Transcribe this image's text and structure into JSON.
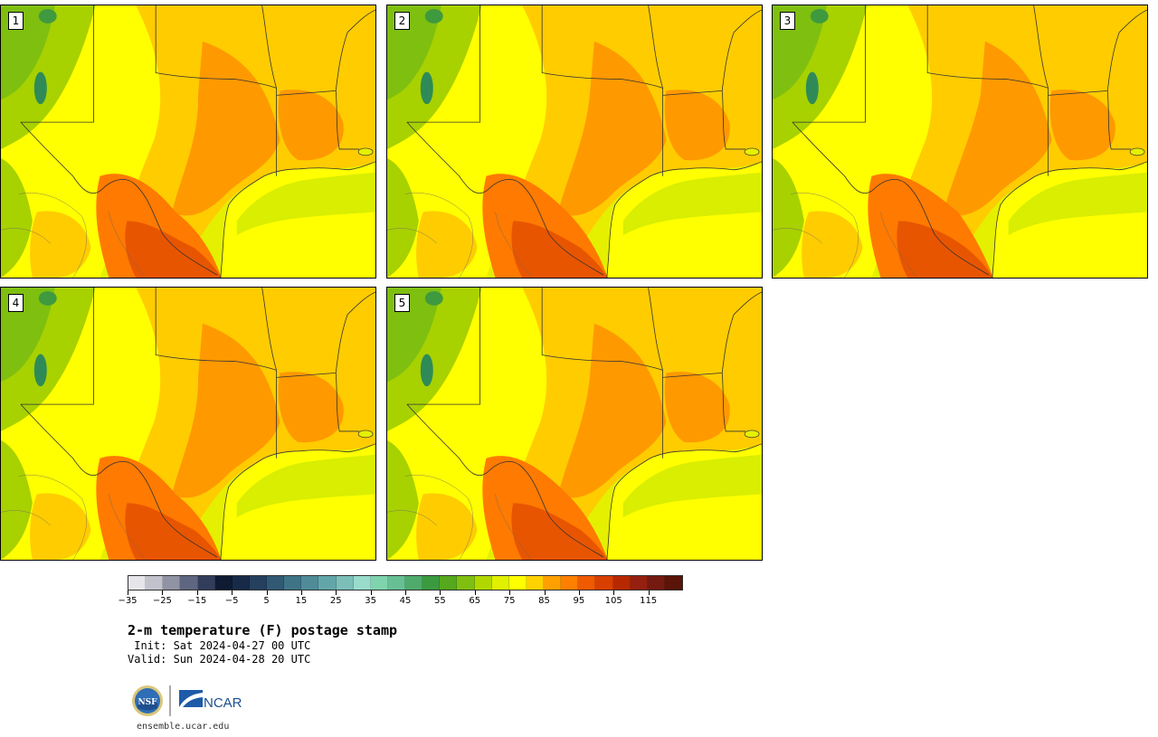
{
  "panels": [
    {
      "label": "1",
      "variant": 0
    },
    {
      "label": "2",
      "variant": 1
    },
    {
      "label": "3",
      "variant": 2
    },
    {
      "label": "4",
      "variant": 3
    },
    {
      "label": "5",
      "variant": 4
    }
  ],
  "colors": {
    "gulf": "#ffff00",
    "coast": "#d9ee00",
    "light_yellow_green": "#e4f000",
    "mid_green": "#a8d100",
    "green": "#7fbf10",
    "dark_green": "#3f9a3f",
    "mountain_green": "#2e8b57",
    "gold": "#ffcc00",
    "orange": "#ff9900",
    "dark_orange": "#ff7a00",
    "red_orange": "#e85500",
    "border_line": "#333333"
  },
  "colorbar": {
    "colors": [
      "#e6e6ea",
      "#c2c2cc",
      "#8f93a3",
      "#5f6680",
      "#323d5c",
      "#0f1b33",
      "#172a48",
      "#24405e",
      "#315974",
      "#3f7386",
      "#4f8c98",
      "#63a6a9",
      "#7cbfb9",
      "#99dccc",
      "#7fd3ad",
      "#67c094",
      "#4fab6b",
      "#3b9a3f",
      "#56a81c",
      "#7fbf10",
      "#b0d800",
      "#e0f000",
      "#ffff00",
      "#ffd100",
      "#ffa000",
      "#ff7f00",
      "#f05a00",
      "#d93f00",
      "#b82800",
      "#952010",
      "#741a10",
      "#5a1408"
    ],
    "ticks": [
      "−35",
      "−25",
      "−15",
      "−5",
      "5",
      "15",
      "25",
      "35",
      "45",
      "55",
      "65",
      "75",
      "85",
      "95",
      "105",
      "115"
    ]
  },
  "title": "2-m temperature (F) postage stamp",
  "init_line": " Init: Sat 2024-04-27 00 UTC",
  "valid_line": "Valid: Sun 2024-04-28 20 UTC",
  "logos": {
    "nsf": "NSF",
    "ncar": "NCAR"
  },
  "site": "ensemble.ucar.edu"
}
